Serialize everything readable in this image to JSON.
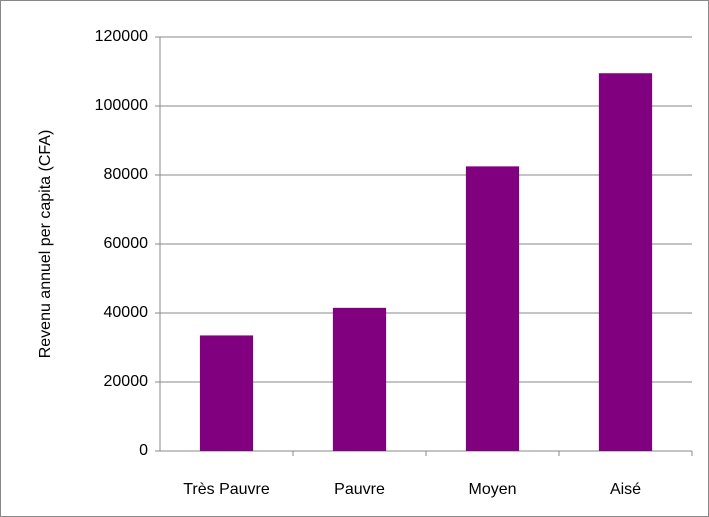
{
  "chart_data": {
    "type": "bar",
    "y_label": "Revenu annuel per capita (CFA)",
    "categories": [
      "Très Pauvre",
      "Pauvre",
      "Moyen",
      "Aisé"
    ],
    "values": [
      33500,
      41500,
      82500,
      109500
    ],
    "color": "#800080",
    "ylim": [
      0,
      120000
    ],
    "yticks": [
      0,
      20000,
      40000,
      60000,
      80000,
      100000,
      120000
    ],
    "grid": true
  }
}
